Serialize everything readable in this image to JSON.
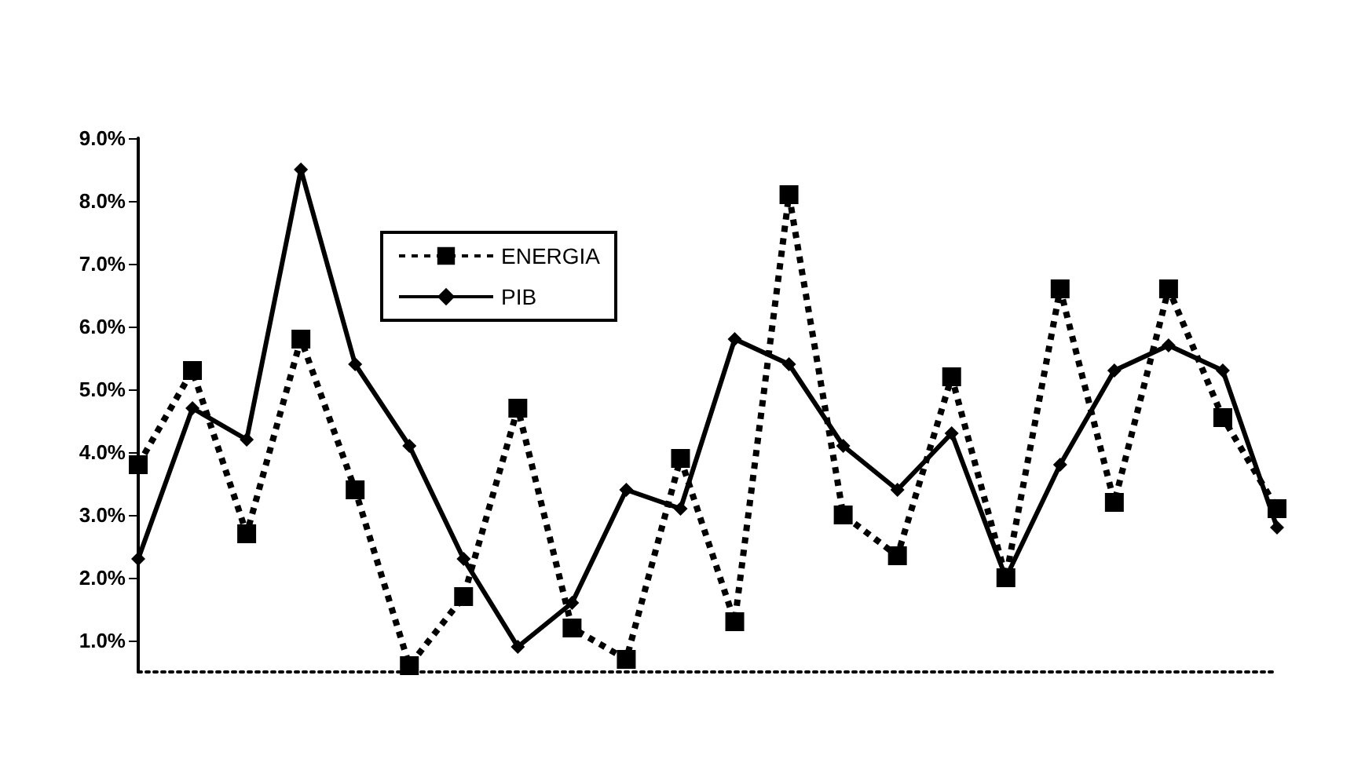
{
  "chart_data": {
    "type": "line",
    "categories": [
      null,
      null,
      null,
      null,
      null,
      null,
      null,
      null,
      null,
      null,
      null,
      null,
      null,
      null,
      null,
      null,
      null,
      null,
      null,
      null,
      null,
      null
    ],
    "series": [
      {
        "name": "ENERGIA",
        "color": "#000000",
        "marker": "square",
        "line_style": "dashed",
        "values": [
          3.8,
          5.3,
          2.7,
          5.8,
          3.4,
          0.6,
          1.7,
          4.7,
          1.2,
          0.7,
          3.9,
          1.3,
          8.1,
          3.0,
          2.35,
          5.2,
          2.0,
          6.6,
          3.2,
          6.6,
          4.55,
          3.1
        ]
      },
      {
        "name": "PIB",
        "color": "#000000",
        "marker": "diamond",
        "line_style": "solid",
        "values": [
          2.3,
          4.7,
          4.2,
          8.5,
          5.4,
          4.1,
          2.3,
          0.9,
          1.6,
          3.4,
          3.1,
          5.8,
          5.4,
          4.1,
          3.4,
          4.3,
          2.0,
          3.8,
          5.3,
          5.7,
          5.3,
          2.8
        ]
      }
    ],
    "ylim": [
      0.5,
      9
    ],
    "yticks": [
      {
        "value": 1,
        "label": "1.0%"
      },
      {
        "value": 2,
        "label": "2.0%"
      },
      {
        "value": 3,
        "label": "3.0%"
      },
      {
        "value": 4,
        "label": "4.0%"
      },
      {
        "value": 5,
        "label": "5.0%"
      },
      {
        "value": 6,
        "label": "6.0%"
      },
      {
        "value": 7,
        "label": "7.0%"
      },
      {
        "value": 8,
        "label": "8.0%"
      },
      {
        "value": 9,
        "label": "9.0%"
      }
    ],
    "tick_labels": "y",
    "grid": false,
    "legend": "top left"
  }
}
